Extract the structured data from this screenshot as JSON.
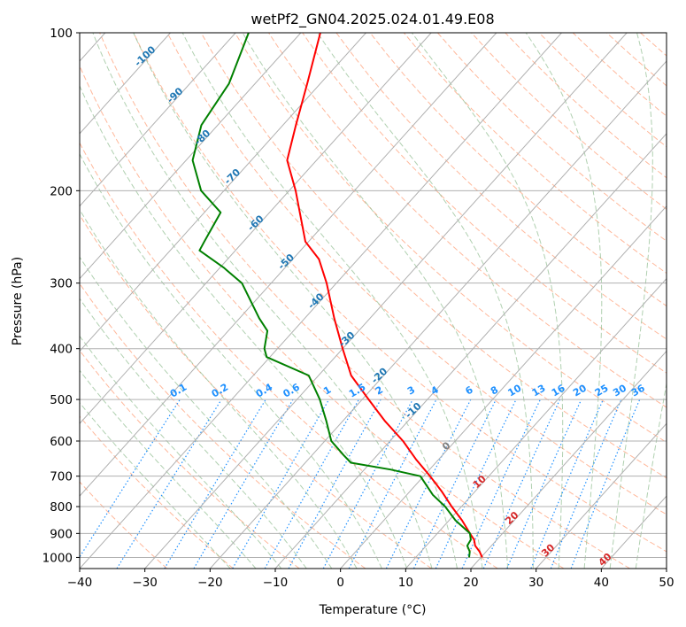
{
  "chart_data": {
    "type": "line",
    "subtype": "skew-T log-p diagram",
    "title": "wetPf2_GN04.2025.024.01.49.E08",
    "xlabel": "Temperature (°C)",
    "ylabel": "Pressure (hPa)",
    "xlim": [
      -40,
      50
    ],
    "ylim": [
      1050,
      100
    ],
    "y_scale": "log",
    "grid": true,
    "x_ticks": [
      -40,
      -30,
      -20,
      -10,
      0,
      10,
      20,
      30,
      40,
      50
    ],
    "y_ticks": [
      100,
      200,
      300,
      400,
      500,
      600,
      700,
      800,
      900,
      1000
    ],
    "series": [
      {
        "role": "temperature",
        "color": "#ff0000",
        "points": [
          [
            1000,
            20.2
          ],
          [
            975,
            19.0
          ],
          [
            950,
            17.5
          ],
          [
            925,
            16.5
          ],
          [
            900,
            15.0
          ],
          [
            850,
            12.0
          ],
          [
            800,
            8.5
          ],
          [
            750,
            5.0
          ],
          [
            700,
            1.0
          ],
          [
            650,
            -3.5
          ],
          [
            600,
            -8.0
          ],
          [
            550,
            -13.5
          ],
          [
            500,
            -19.0
          ],
          [
            450,
            -25.0
          ],
          [
            400,
            -30.0
          ],
          [
            350,
            -35.5
          ],
          [
            300,
            -41.5
          ],
          [
            270,
            -46.0
          ],
          [
            250,
            -50.5
          ],
          [
            200,
            -59.0
          ],
          [
            175,
            -64.5
          ],
          [
            150,
            -68.0
          ],
          [
            125,
            -72.0
          ],
          [
            100,
            -77.0
          ]
        ]
      },
      {
        "role": "dewpoint",
        "color": "#008000",
        "points": [
          [
            1000,
            18.2
          ],
          [
            975,
            17.5
          ],
          [
            950,
            16.3
          ],
          [
            925,
            16.0
          ],
          [
            900,
            15.0
          ],
          [
            850,
            11.0
          ],
          [
            800,
            7.5
          ],
          [
            760,
            4.0
          ],
          [
            700,
            -0.5
          ],
          [
            680,
            -6.0
          ],
          [
            660,
            -13.0
          ],
          [
            640,
            -15.0
          ],
          [
            600,
            -19.0
          ],
          [
            550,
            -22.5
          ],
          [
            500,
            -26.5
          ],
          [
            450,
            -31.5
          ],
          [
            415,
            -40.5
          ],
          [
            400,
            -42.0
          ],
          [
            370,
            -44.0
          ],
          [
            350,
            -47.0
          ],
          [
            300,
            -54.5
          ],
          [
            280,
            -59.5
          ],
          [
            260,
            -65.5
          ],
          [
            250,
            -66.0
          ],
          [
            220,
            -67.5
          ],
          [
            200,
            -73.5
          ],
          [
            175,
            -79.0
          ],
          [
            150,
            -82.5
          ],
          [
            125,
            -84.0
          ],
          [
            100,
            -88.0
          ]
        ]
      }
    ],
    "isotherm_labels": [
      "-100",
      "-90",
      "-80",
      "-70",
      "-60",
      "-50",
      "-40",
      "-30",
      "-20",
      "-10",
      "0",
      "10",
      "20",
      "30",
      "40"
    ],
    "mixing_ratio_labels": [
      "0.1",
      "0.2",
      "0.4",
      "0.6",
      "1",
      "1.5",
      "2",
      "3",
      "4",
      "6",
      "8",
      "10",
      "13",
      "16",
      "20",
      "25",
      "30",
      "36"
    ],
    "colors": {
      "temperature": "#ff0000",
      "dewpoint": "#008000",
      "isotherm": "#b0b0b0",
      "dry_adiabat": "#ffa07a",
      "moist_adiabat": "#8fbc8f",
      "mixing_ratio": "#1e90ff",
      "isotherm_label_cold": "#1f77b4",
      "isotherm_label_zero": "#808080",
      "isotherm_label_warm": "#d62728",
      "mixing_ratio_label": "#1e90ff",
      "grid": "#b0b0b0"
    }
  }
}
